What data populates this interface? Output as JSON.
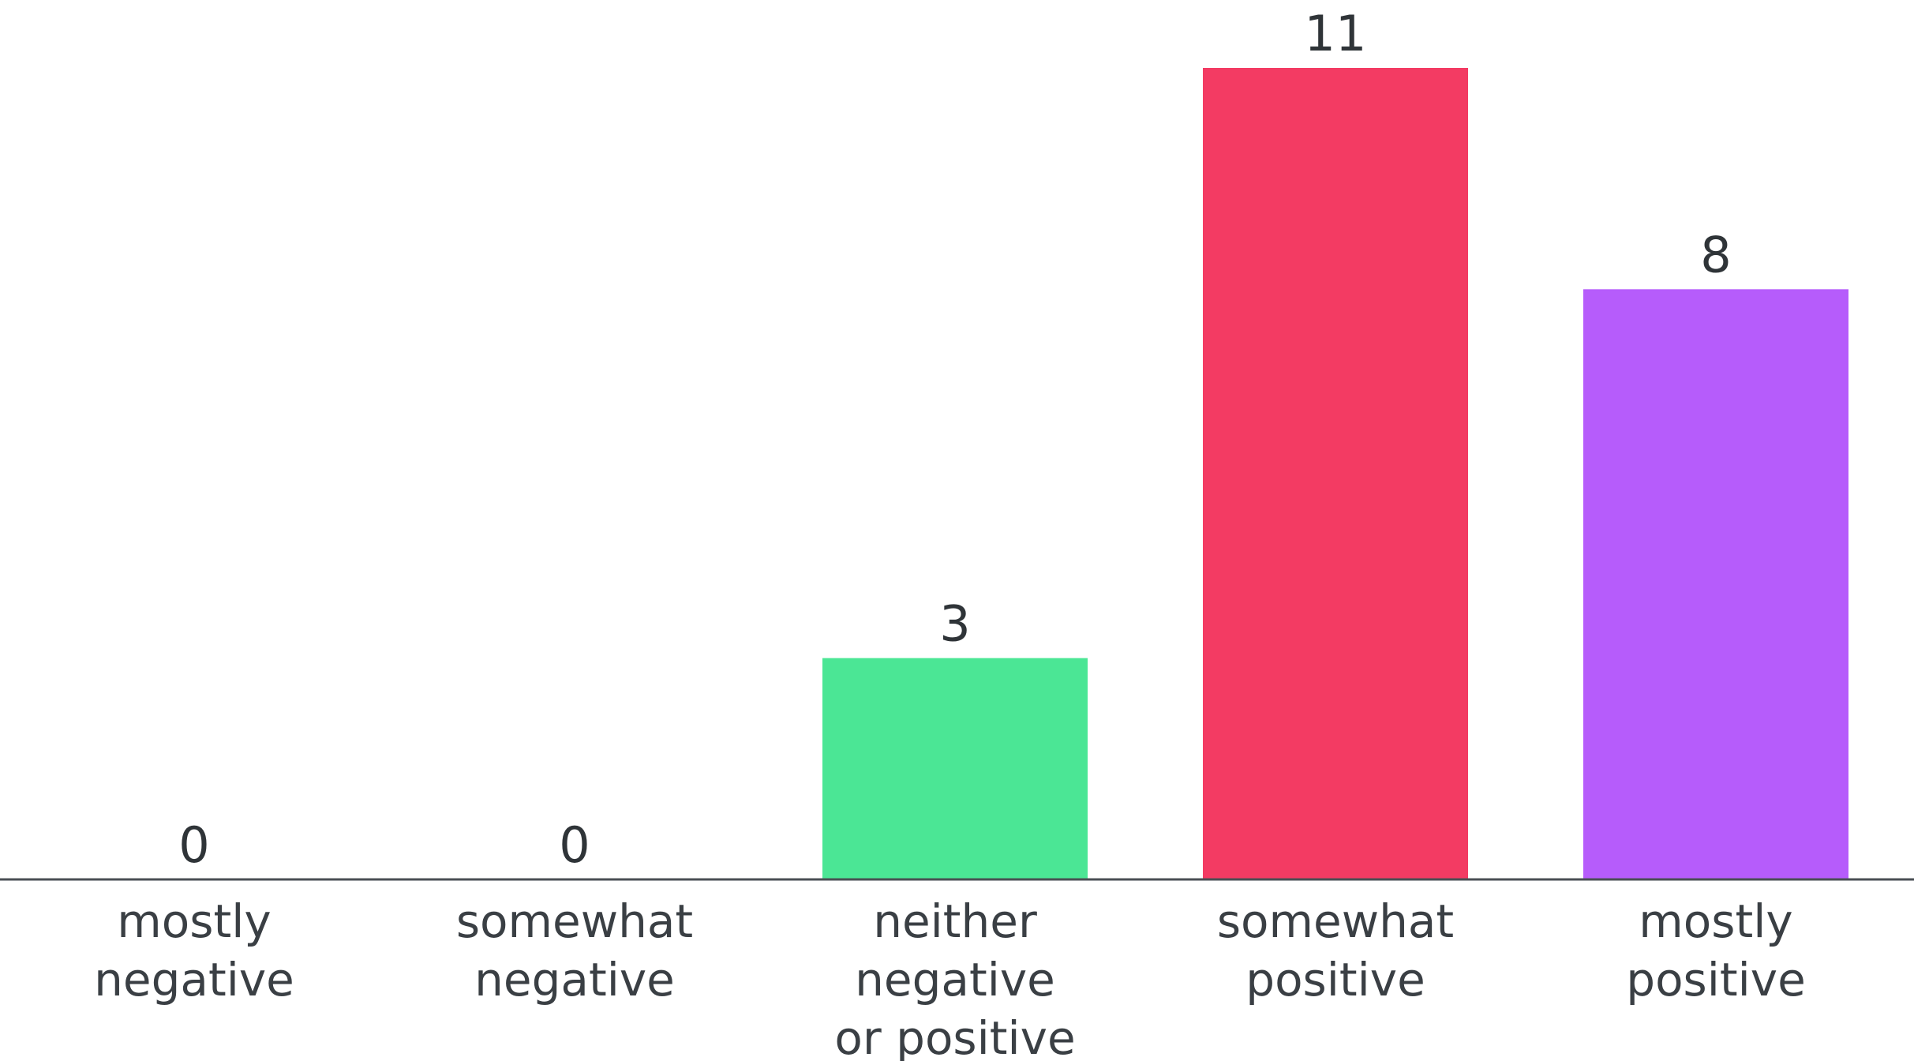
{
  "chart_data": {
    "type": "bar",
    "categories": [
      [
        "mostly",
        "negative"
      ],
      [
        "somewhat",
        "negative"
      ],
      [
        "neither",
        "negative",
        "or positive"
      ],
      [
        "somewhat",
        "positive"
      ],
      [
        "mostly",
        "positive"
      ]
    ],
    "values": [
      0,
      0,
      3,
      11,
      8
    ],
    "colors": [
      "#4be695",
      "#4be695",
      "#4be695",
      "#f33b63",
      "#b65cfb"
    ],
    "data_labels": [
      "0",
      "0",
      "3",
      "11",
      "8"
    ],
    "ylim": [
      0,
      11
    ],
    "grid": false,
    "legend": "none"
  }
}
